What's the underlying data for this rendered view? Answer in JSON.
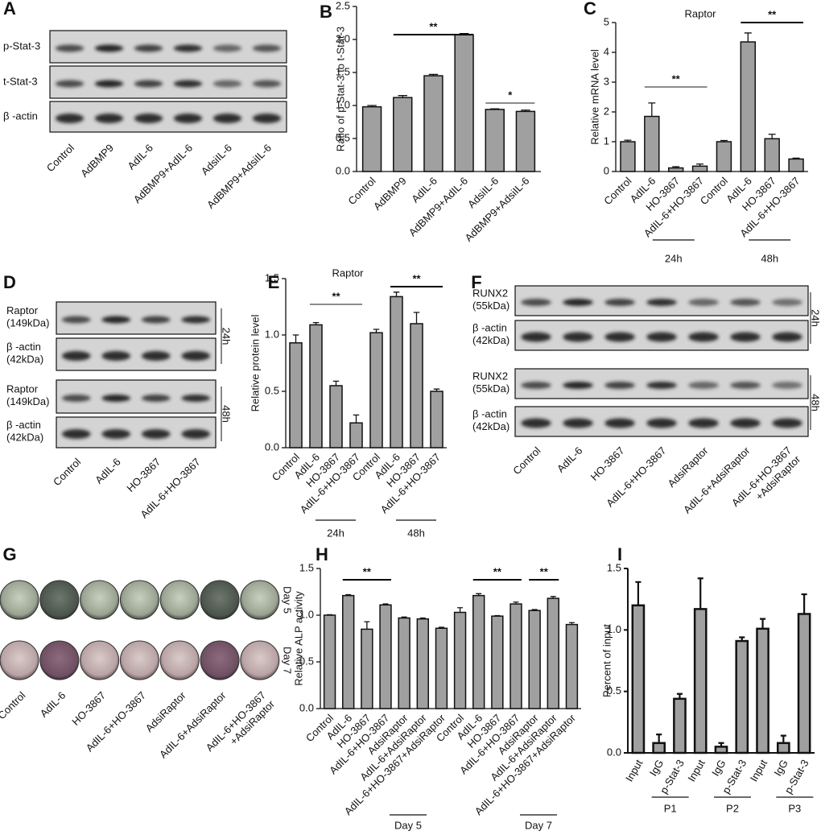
{
  "chart_data": [
    {
      "type": "bar",
      "panel": "B",
      "ylabel": "Ratio of p-Stat-3 to t-Stat-3",
      "categories": [
        "Control",
        "AdBMP9",
        "AdIL-6",
        "AdBMP9+AdIL-6",
        "AdsiIL-6",
        "AdBMP9+AdsiIL-6"
      ],
      "values": [
        0.98,
        1.12,
        1.45,
        2.07,
        0.94,
        0.91
      ],
      "errors": [
        0.02,
        0.03,
        0.02,
        0.02,
        0.01,
        0.02
      ],
      "color": "#a0a0a0",
      "ylim": [
        0,
        2.5
      ],
      "yticks": [
        {
          "value": 0,
          "label": "0.0"
        },
        0.5,
        {
          "value": 1,
          "label": "1.0"
        },
        1.5,
        {
          "value": 2,
          "label": "2.0"
        },
        2.5
      ],
      "annotations": [
        {
          "text": "**",
          "color": "#000000"
        },
        {
          "text": "*",
          "color": "#8c8c8c"
        }
      ]
    },
    {
      "type": "bar",
      "panel": "C",
      "title": "Raptor",
      "ylabel": "Relative mRNA level",
      "categories": [
        "Control",
        "AdIL-6",
        "HO-3867",
        "AdIL-6+HO-3867",
        "Control",
        "AdIL-6",
        "HO-3867",
        "AdIL-6+HO-3867"
      ],
      "values": [
        1.0,
        1.85,
        0.12,
        0.18,
        1.0,
        4.35,
        1.1,
        0.42
      ],
      "errors": [
        0.05,
        0.45,
        0.04,
        0.07,
        0.04,
        0.3,
        0.15,
        0.03
      ],
      "color": "#a0a0a0",
      "ylim": [
        0,
        5
      ],
      "yticks": [
        0,
        1,
        2,
        3,
        4,
        5
      ],
      "groups": [
        "24h",
        "48h"
      ],
      "annotations": [
        {
          "text": "**",
          "color": "#8c8c8c"
        },
        {
          "text": "**",
          "color": "#000000"
        }
      ]
    },
    {
      "type": "bar",
      "panel": "E",
      "title": "Raptor",
      "ylabel": "Relative protein level",
      "categories": [
        "Control",
        "AdIL-6",
        "HO-3867",
        "AdIL-6+HO-3867",
        "Control",
        "AdIL-6",
        "HO-3867",
        "AdIL-6+HO-3867"
      ],
      "values": [
        0.93,
        1.09,
        0.55,
        0.22,
        1.02,
        1.34,
        1.1,
        0.5
      ],
      "errors": [
        0.07,
        0.02,
        0.04,
        0.07,
        0.03,
        0.04,
        0.1,
        0.02
      ],
      "color": "#a0a0a0",
      "ylim": [
        0,
        1.5
      ],
      "yticks": [
        {
          "value": 0,
          "label": "0.0"
        },
        0.5,
        {
          "value": 1,
          "label": "1.0"
        },
        1.5
      ],
      "groups": [
        "24h",
        "48h"
      ],
      "annotations": [
        {
          "text": "**",
          "color": "#8c8c8c"
        },
        {
          "text": "**",
          "color": "#000000"
        }
      ]
    },
    {
      "type": "bar",
      "panel": "H",
      "ylabel": "Relative ALP activity",
      "categories": [
        "Control",
        "AdIL-6",
        "HO-3867",
        "AdIL-6+HO-3867",
        "AdsiRaptor",
        "AdIL-6+AdsiRaptor",
        "AdIL-6+HO-3867+AdsiRaptor",
        "Control",
        "AdIL-6",
        "HO-3867",
        "AdIL-6+HO-3867",
        "AdsiRaptor",
        "AdIL-6+AdsiRaptor",
        "AdIL-6+HO-3867+AdsiRaptor"
      ],
      "values": [
        1.0,
        1.21,
        0.85,
        1.11,
        0.97,
        0.96,
        0.86,
        1.03,
        1.21,
        0.99,
        1.12,
        1.05,
        1.18,
        0.9
      ],
      "errors": [
        0.005,
        0.01,
        0.08,
        0.01,
        0.01,
        0.01,
        0.01,
        0.05,
        0.02,
        0.005,
        0.02,
        0.01,
        0.02,
        0.02
      ],
      "color": "#a0a0a0",
      "ylim": [
        0,
        1.5
      ],
      "yticks": [
        {
          "value": 0,
          "label": "0.0"
        },
        0.5,
        {
          "value": 1,
          "label": "1.0"
        },
        1.5
      ],
      "groups": [
        "Day 5",
        "Day 7"
      ],
      "annotations": [
        {
          "text": "**",
          "color": "#000000"
        },
        {
          "text": "**",
          "color": "#000000"
        },
        {
          "text": "**",
          "color": "#000000"
        }
      ]
    },
    {
      "type": "bar",
      "panel": "I",
      "ylabel": "Percent of input",
      "categories": [
        "Input",
        "IgG",
        "p-Stat-3",
        "Input",
        "IgG",
        "p-Stat-3",
        "Input",
        "IgG",
        "p-Stat-3"
      ],
      "values": [
        1.2,
        0.08,
        0.44,
        1.17,
        0.05,
        0.91,
        1.01,
        0.08,
        1.13
      ],
      "errors": [
        0.19,
        0.07,
        0.04,
        0.25,
        0.03,
        0.03,
        0.08,
        0.06,
        0.16
      ],
      "color": "#a0a0a0",
      "ylim": [
        0,
        1.5
      ],
      "yticks": [
        {
          "value": 0,
          "label": "0.0"
        },
        0.5,
        {
          "value": 1,
          "label": "1.0"
        },
        1.5
      ],
      "groups": [
        "P1",
        "P2",
        "P3"
      ]
    }
  ],
  "blots": [
    {
      "panel": "A",
      "rows": [
        "p-Stat-3",
        "t-Stat-3",
        "β -actin"
      ],
      "lanes": [
        "Control",
        "AdBMP9",
        "AdIL-6",
        "AdBMP9+AdIL-6",
        "AdsiIL-6",
        "AdBMP9+AdsiIL-6"
      ]
    },
    {
      "panel": "D",
      "rows": [
        "Raptor\n(149kDa)",
        "β -actin\n(42kDa)",
        "Raptor\n(149kDa)",
        "β -actin\n(42kDa)"
      ],
      "times": [
        "24h",
        "48h"
      ],
      "lanes": [
        "Control",
        "AdIL-6",
        "HO-3867",
        "AdIL-6+HO-3867"
      ]
    },
    {
      "panel": "F",
      "rows": [
        "RUNX2\n(55kDa)",
        "β -actin\n(42kDa)",
        "RUNX2\n(55kDa)",
        "β -actin\n(42kDa)"
      ],
      "times": [
        "24h",
        "48h"
      ],
      "lanes": [
        "Control",
        "AdIL-6",
        "HO-3867",
        "AdIL-6+HO-3867",
        "AdsiRaptor",
        "AdIL-6+AdsiRaptor",
        "AdIL-6+HO-3867\n+AdsiRaptor"
      ]
    }
  ],
  "wells": {
    "panel": "G",
    "days": [
      "Day 5",
      "Day 7"
    ],
    "lanes": [
      "Control",
      "AdIL-6",
      "HO-3867",
      "AdIL-6+HO-3867",
      "AdsiRaptor",
      "AdIL-6+AdsiRaptor",
      "AdIL-6+HO-3867\n+AdsiRaptor"
    ]
  }
}
